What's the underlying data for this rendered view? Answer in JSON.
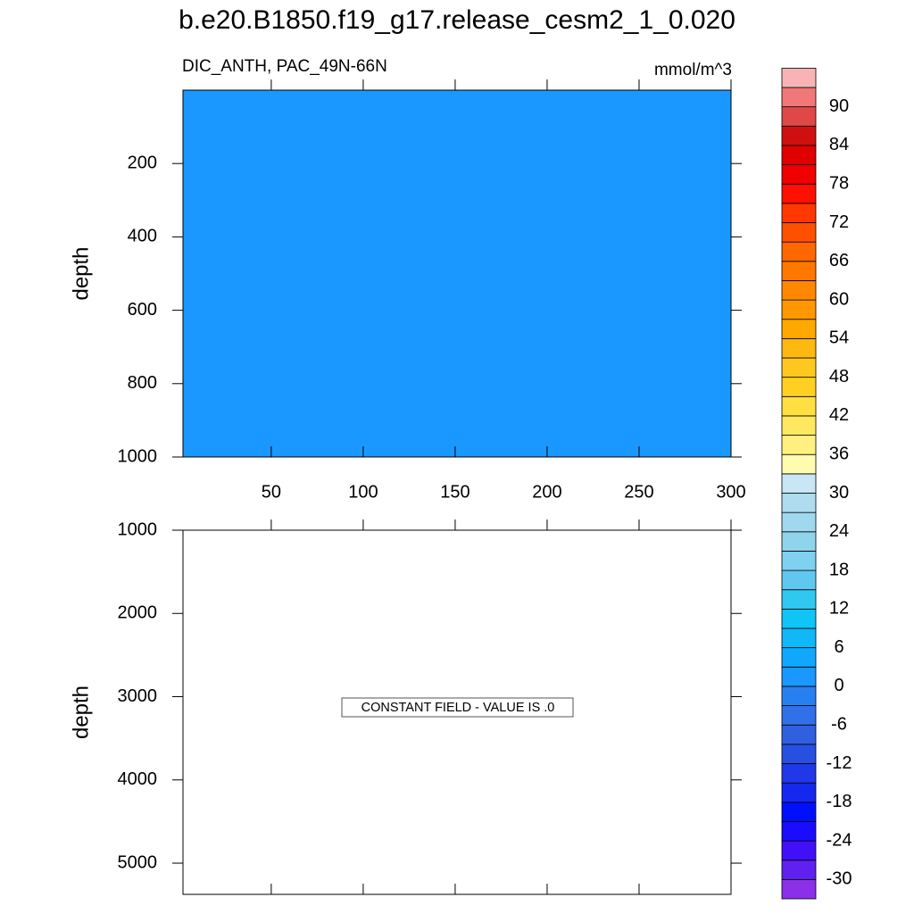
{
  "chart_data": [
    {
      "type": "contour",
      "title": "b.e20.B1850.f19_g17.release_cesm2_1_0.020",
      "subtitle_left": "DIC_ANTH, PAC_49N-66N",
      "subtitle_right": "mmol/m^3",
      "y_label": "depth",
      "xlim": [
        2,
        300
      ],
      "ylim": [
        0,
        1000
      ],
      "y_reversed": true,
      "xticks": [
        50,
        100,
        150,
        200,
        250,
        300
      ],
      "x_tick_labels": true,
      "yticks": [
        200,
        400,
        600,
        800,
        1000
      ],
      "field_value": 0
    },
    {
      "type": "contour",
      "y_label": "depth",
      "xlim": [
        2,
        300
      ],
      "ylim": [
        1000,
        5375
      ],
      "y_reversed": true,
      "xticks": [
        50,
        100,
        150,
        200,
        250,
        300
      ],
      "x_tick_labels": false,
      "yticks": [
        1000,
        2000,
        3000,
        4000,
        5000
      ],
      "annotation": "CONSTANT FIELD - VALUE IS .0"
    },
    {
      "type": "colorbar",
      "clim": [
        -33,
        93
      ],
      "step": 3,
      "ticks": [
        90,
        84,
        78,
        72,
        66,
        60,
        54,
        48,
        42,
        36,
        30,
        24,
        18,
        12,
        6,
        0,
        -6,
        -12,
        -18,
        -24,
        -30
      ],
      "colors": [
        "#8b30e8",
        "#6020f0",
        "#4010f8",
        "#1a0cff",
        "#0010ff",
        "#1428f0",
        "#2038e8",
        "#2850e0",
        "#3060e0",
        "#3070e8",
        "#2880f0",
        "#1a98ff",
        "#10a8ff",
        "#10b8f8",
        "#10c4f8",
        "#30c8f0",
        "#60c8f0",
        "#80d0f0",
        "#90d4ec",
        "#a0d8f0",
        "#b0dcf0",
        "#c8e6f4",
        "#fffcb0",
        "#fff080",
        "#ffe860",
        "#ffe040",
        "#ffd020",
        "#ffc820",
        "#ffb810",
        "#ffa800",
        "#ff9800",
        "#ff8800",
        "#ff7800",
        "#ff6800",
        "#ff5000",
        "#ff3800",
        "#ff1000",
        "#f00000",
        "#e00000",
        "#d01010",
        "#e04848",
        "#f07878",
        "#f8b4b4"
      ]
    }
  ]
}
